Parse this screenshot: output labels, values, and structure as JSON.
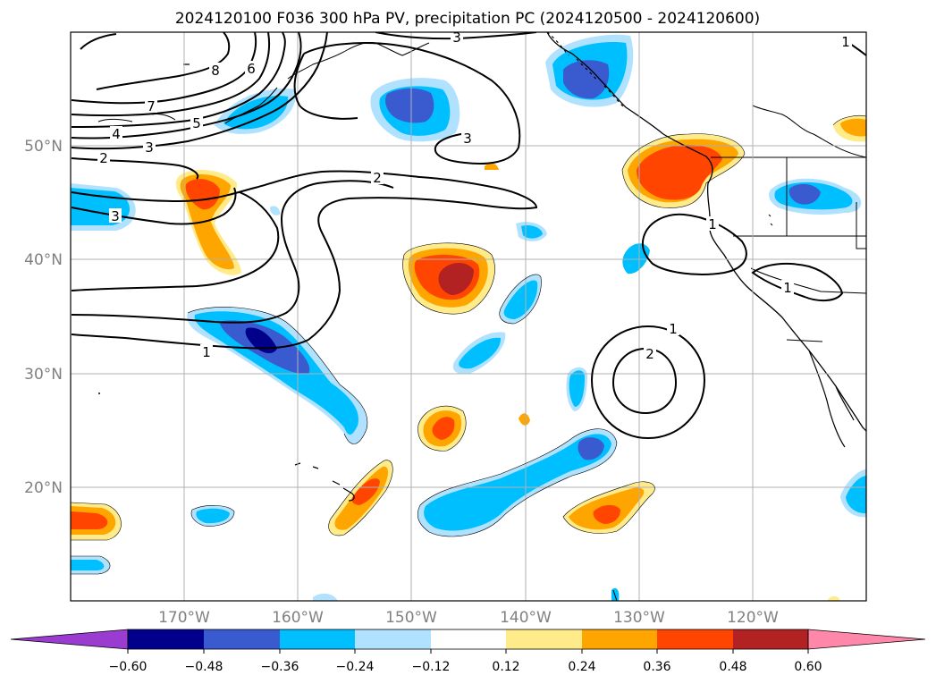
{
  "title": "2024120100 F036 300 hPa PV, precipitation PC (2024120500 - 2024120600)",
  "map": {
    "lon_labels": [
      "170°W",
      "160°W",
      "150°W",
      "140°W",
      "130°W",
      "120°W"
    ],
    "lat_labels": [
      "50°N",
      "40°N",
      "30°N",
      "20°N"
    ],
    "gridlines": true
  },
  "colorbar": {
    "tick_labels": [
      "−0.60",
      "−0.48",
      "−0.36",
      "−0.24",
      "−0.12",
      "0.12",
      "0.24",
      "0.36",
      "0.48",
      "0.60"
    ],
    "colors": [
      "#9a3ccf",
      "#00008b",
      "#3a5bd0",
      "#00bfff",
      "#b0e2ff",
      "#ffffff",
      "#ffeb8a",
      "#ffa500",
      "#ff4500",
      "#b22222",
      "#ff88aa"
    ],
    "extend": "both"
  },
  "contour_labels": {
    "nw": [
      "3",
      "8",
      "6",
      "7",
      "5",
      "4",
      "3",
      "2"
    ],
    "main": [
      "3",
      "2",
      "3",
      "1"
    ],
    "east": [
      "1",
      "1",
      "1",
      "2"
    ],
    "corner": [
      "1"
    ]
  }
}
